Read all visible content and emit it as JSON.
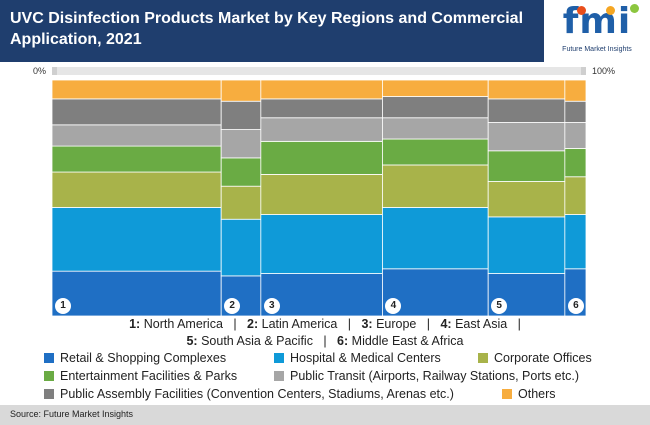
{
  "header": {
    "title": "UVC Disinfection Products Market by Key Regions and Commercial Application, 2021",
    "logo_text": "fmi",
    "logo_caption": "Future Market Insights"
  },
  "axis": {
    "min_label": "0%",
    "max_label": "100%"
  },
  "regions_key": [
    {
      "num": "1:",
      "name": "North America"
    },
    {
      "num": "2:",
      "name": "Latin America"
    },
    {
      "num": "3:",
      "name": "Europe"
    },
    {
      "num": "4:",
      "name": "East Asia"
    },
    {
      "num": "5:",
      "name": "South Asia & Pacific"
    },
    {
      "num": "6:",
      "name": "Middle East & Africa"
    }
  ],
  "chart_data": {
    "type": "marimekko",
    "x_axis_range": [
      0,
      100
    ],
    "categories": [
      "1",
      "2",
      "3",
      "4",
      "5",
      "6"
    ],
    "category_widths": [
      32,
      7.5,
      23,
      20,
      14.5,
      4
    ],
    "series": [
      {
        "name": "Retail & Shopping Complexes",
        "color": "#1f6fc4",
        "values": [
          19,
          17,
          18,
          20,
          18,
          20
        ]
      },
      {
        "name": "Hospital & Medical Centers",
        "color": "#0f9ad8",
        "values": [
          27,
          24,
          25,
          26,
          24,
          23
        ]
      },
      {
        "name": "Corporate Offices",
        "color": "#a8b34a",
        "values": [
          15,
          14,
          17,
          18,
          15,
          16
        ]
      },
      {
        "name": "Entertainment Facilities & Parks",
        "color": "#6aab44",
        "values": [
          11,
          12,
          14,
          11,
          13,
          12
        ]
      },
      {
        "name": "Public Transit (Airports, Railway Stations, Ports etc.)",
        "color": "#a6a6a6",
        "values": [
          9,
          12,
          10,
          9,
          12,
          11
        ]
      },
      {
        "name": "Public Assembly Facilities (Convention Centers, Stadiums, Arenas etc.)",
        "color": "#7f7f7f",
        "values": [
          11,
          12,
          8,
          9,
          10,
          9
        ]
      },
      {
        "name": "Others",
        "color": "#f7ad3f",
        "values": [
          8,
          9,
          8,
          7,
          8,
          9
        ]
      }
    ]
  },
  "source": "Source: Future Market Insights"
}
